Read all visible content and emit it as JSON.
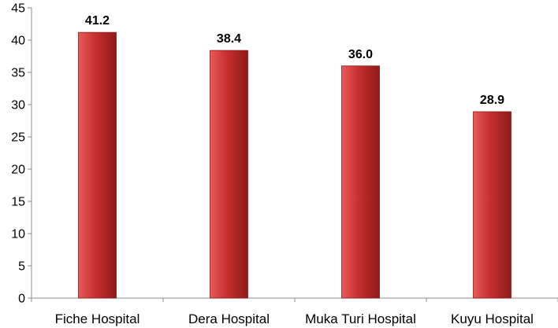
{
  "chart_data": {
    "type": "bar",
    "title": "",
    "xlabel": "",
    "ylabel": "",
    "categories": [
      "Fiche Hospital",
      "Dera Hospital",
      "Muka Turi Hospital",
      "Kuyu Hospital"
    ],
    "values": [
      41.2,
      38.4,
      36.0,
      28.9
    ],
    "data_labels": [
      "41.2",
      "38.4",
      "36.0",
      "28.9"
    ],
    "ylim": [
      0,
      45
    ],
    "yticks": [
      0,
      5,
      10,
      15,
      20,
      25,
      30,
      35,
      40,
      45
    ],
    "grid": false,
    "legend": "none",
    "colors": {
      "bar_light": "#e85a5a",
      "bar_main": "#c62f2f",
      "bar_dark": "#8f1a1a",
      "axis": "#8c8c8c"
    }
  }
}
